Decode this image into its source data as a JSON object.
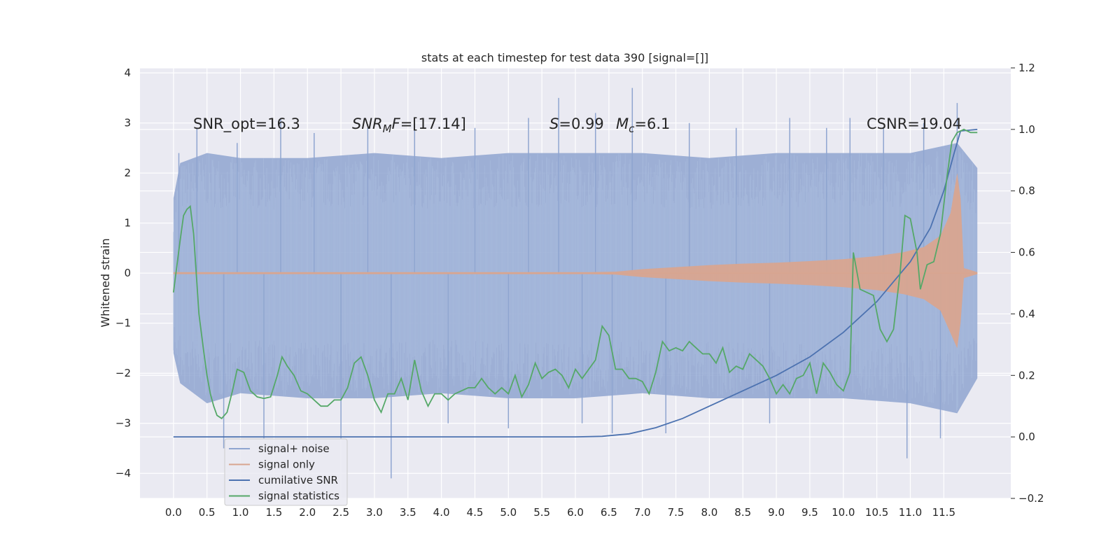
{
  "chart_data": {
    "type": "line",
    "title": "stats at each timestep for test data 390 [signal=[]]",
    "ylabel": "Whitened strain",
    "xlim": [
      -0.5,
      12.5
    ],
    "ylim": [
      -4.5,
      4.1
    ],
    "y2lim": [
      -0.2,
      1.2
    ],
    "grid": true,
    "legend_location": "lower-left",
    "x_ticks": [
      "0.0",
      "0.5",
      "1.0",
      "1.5",
      "2.0",
      "2.5",
      "3.0",
      "3.5",
      "4.0",
      "4.5",
      "5.0",
      "5.5",
      "6.0",
      "6.5",
      "7.0",
      "7.5",
      "8.0",
      "8.5",
      "9.0",
      "9.5",
      "10.0",
      "10.5",
      "11.0",
      "11.5"
    ],
    "y_ticks": [
      "4",
      "3",
      "2",
      "1",
      "0",
      "−1",
      "−2",
      "−3",
      "−4"
    ],
    "y2_ticks": [
      "1.2",
      "1.0",
      "0.8",
      "0.6",
      "0.4",
      "0.2",
      "0.0",
      "−0.2"
    ],
    "annotations": {
      "snr_opt": "SNR_opt=16.3",
      "snr_mf_base": "SNR",
      "snr_mf_sub": "M",
      "snr_mf_rest": "F=[17.14]",
      "s_label": "S",
      "s_value": "=0.99",
      "mc_base": "M",
      "mc_sub": "c",
      "mc_value": "=6.1",
      "csnr": "CSNR=19.04"
    },
    "series": [
      {
        "name": "signal+ noise",
        "axis": "left",
        "color": "#8fa5d0",
        "envelope_upper": [
          [
            0.0,
            1.5
          ],
          [
            0.1,
            2.2
          ],
          [
            0.5,
            2.4
          ],
          [
            1.0,
            2.3
          ],
          [
            2.0,
            2.3
          ],
          [
            3.0,
            2.4
          ],
          [
            4.0,
            2.3
          ],
          [
            5.0,
            2.4
          ],
          [
            6.0,
            2.4
          ],
          [
            7.0,
            2.4
          ],
          [
            8.0,
            2.3
          ],
          [
            9.0,
            2.4
          ],
          [
            10.0,
            2.4
          ],
          [
            11.0,
            2.4
          ],
          [
            11.7,
            2.6
          ],
          [
            12.0,
            2.1
          ]
        ],
        "envelope_lower": [
          [
            0.0,
            -1.6
          ],
          [
            0.1,
            -2.2
          ],
          [
            0.5,
            -2.6
          ],
          [
            1.0,
            -2.4
          ],
          [
            2.0,
            -2.5
          ],
          [
            3.0,
            -2.5
          ],
          [
            4.0,
            -2.4
          ],
          [
            5.0,
            -2.5
          ],
          [
            6.0,
            -2.5
          ],
          [
            7.0,
            -2.4
          ],
          [
            8.0,
            -2.5
          ],
          [
            9.0,
            -2.5
          ],
          [
            10.0,
            -2.5
          ],
          [
            11.0,
            -2.6
          ],
          [
            11.7,
            -2.8
          ],
          [
            12.0,
            -2.1
          ]
        ],
        "spikes": [
          [
            0.08,
            2.4
          ],
          [
            0.35,
            2.9
          ],
          [
            0.75,
            -3.5
          ],
          [
            0.95,
            2.6
          ],
          [
            1.35,
            -3.3
          ],
          [
            1.6,
            3.1
          ],
          [
            2.1,
            2.8
          ],
          [
            2.5,
            -3.3
          ],
          [
            2.9,
            2.9
          ],
          [
            3.25,
            -4.1
          ],
          [
            3.6,
            3.0
          ],
          [
            4.1,
            -3.0
          ],
          [
            4.5,
            2.9
          ],
          [
            5.0,
            -3.1
          ],
          [
            5.3,
            3.1
          ],
          [
            5.75,
            3.5
          ],
          [
            6.1,
            -3.0
          ],
          [
            6.3,
            3.2
          ],
          [
            6.55,
            -3.2
          ],
          [
            6.85,
            3.7
          ],
          [
            7.35,
            -3.2
          ],
          [
            7.7,
            3.0
          ],
          [
            8.4,
            2.9
          ],
          [
            8.9,
            -3.0
          ],
          [
            9.2,
            3.1
          ],
          [
            9.75,
            2.9
          ],
          [
            10.1,
            3.1
          ],
          [
            10.6,
            2.9
          ],
          [
            10.95,
            -3.7
          ],
          [
            11.2,
            3.0
          ],
          [
            11.45,
            -3.3
          ],
          [
            11.7,
            3.4
          ]
        ]
      },
      {
        "name": "signal only",
        "axis": "left",
        "color": "#dd8452",
        "envelope_upper": [
          [
            0.0,
            0.02
          ],
          [
            6.2,
            0.02
          ],
          [
            6.6,
            0.03
          ],
          [
            7.0,
            0.08
          ],
          [
            7.5,
            0.12
          ],
          [
            8.0,
            0.16
          ],
          [
            8.5,
            0.19
          ],
          [
            9.0,
            0.21
          ],
          [
            9.5,
            0.24
          ],
          [
            10.0,
            0.28
          ],
          [
            10.5,
            0.34
          ],
          [
            10.9,
            0.42
          ],
          [
            11.2,
            0.52
          ],
          [
            11.45,
            0.75
          ],
          [
            11.6,
            1.2
          ],
          [
            11.7,
            2.0
          ],
          [
            11.75,
            1.5
          ],
          [
            11.8,
            0.1
          ],
          [
            12.0,
            0.02
          ]
        ],
        "envelope_lower": [
          [
            0.0,
            -0.02
          ],
          [
            6.2,
            -0.02
          ],
          [
            6.6,
            -0.03
          ],
          [
            7.0,
            -0.08
          ],
          [
            7.5,
            -0.12
          ],
          [
            8.0,
            -0.16
          ],
          [
            8.5,
            -0.19
          ],
          [
            9.0,
            -0.21
          ],
          [
            9.5,
            -0.24
          ],
          [
            10.0,
            -0.28
          ],
          [
            10.5,
            -0.34
          ],
          [
            10.9,
            -0.42
          ],
          [
            11.2,
            -0.52
          ],
          [
            11.45,
            -0.75
          ],
          [
            11.6,
            -1.2
          ],
          [
            11.7,
            -1.5
          ],
          [
            11.75,
            -1.0
          ],
          [
            11.8,
            -0.1
          ],
          [
            12.0,
            -0.02
          ]
        ]
      },
      {
        "name": "cumilative SNR",
        "axis": "right",
        "color": "#4c72b0",
        "points": [
          [
            0.0,
            0.0
          ],
          [
            6.0,
            0.0
          ],
          [
            6.4,
            0.002
          ],
          [
            6.8,
            0.01
          ],
          [
            7.2,
            0.03
          ],
          [
            7.6,
            0.06
          ],
          [
            8.0,
            0.1
          ],
          [
            8.5,
            0.15
          ],
          [
            9.0,
            0.2
          ],
          [
            9.5,
            0.26
          ],
          [
            10.0,
            0.34
          ],
          [
            10.5,
            0.44
          ],
          [
            11.0,
            0.57
          ],
          [
            11.3,
            0.68
          ],
          [
            11.5,
            0.8
          ],
          [
            11.65,
            0.92
          ],
          [
            11.75,
            0.995
          ],
          [
            12.0,
            1.0
          ]
        ]
      },
      {
        "name": "signal statistics",
        "axis": "right",
        "color": "#55a868",
        "points": [
          [
            0.0,
            0.47
          ],
          [
            0.1,
            0.64
          ],
          [
            0.15,
            0.72
          ],
          [
            0.2,
            0.74
          ],
          [
            0.25,
            0.75
          ],
          [
            0.3,
            0.66
          ],
          [
            0.38,
            0.4
          ],
          [
            0.45,
            0.28
          ],
          [
            0.5,
            0.2
          ],
          [
            0.55,
            0.14
          ],
          [
            0.6,
            0.1
          ],
          [
            0.65,
            0.07
          ],
          [
            0.72,
            0.06
          ],
          [
            0.8,
            0.08
          ],
          [
            0.88,
            0.15
          ],
          [
            0.95,
            0.22
          ],
          [
            1.05,
            0.21
          ],
          [
            1.15,
            0.15
          ],
          [
            1.25,
            0.13
          ],
          [
            1.35,
            0.125
          ],
          [
            1.45,
            0.13
          ],
          [
            1.55,
            0.2
          ],
          [
            1.62,
            0.26
          ],
          [
            1.7,
            0.23
          ],
          [
            1.8,
            0.2
          ],
          [
            1.9,
            0.15
          ],
          [
            2.0,
            0.14
          ],
          [
            2.1,
            0.12
          ],
          [
            2.2,
            0.1
          ],
          [
            2.3,
            0.1
          ],
          [
            2.4,
            0.12
          ],
          [
            2.5,
            0.12
          ],
          [
            2.6,
            0.16
          ],
          [
            2.7,
            0.24
          ],
          [
            2.8,
            0.26
          ],
          [
            2.9,
            0.2
          ],
          [
            3.0,
            0.12
          ],
          [
            3.1,
            0.08
          ],
          [
            3.2,
            0.14
          ],
          [
            3.3,
            0.14
          ],
          [
            3.4,
            0.19
          ],
          [
            3.5,
            0.12
          ],
          [
            3.6,
            0.25
          ],
          [
            3.7,
            0.15
          ],
          [
            3.8,
            0.1
          ],
          [
            3.9,
            0.14
          ],
          [
            4.0,
            0.14
          ],
          [
            4.1,
            0.12
          ],
          [
            4.2,
            0.14
          ],
          [
            4.3,
            0.15
          ],
          [
            4.4,
            0.16
          ],
          [
            4.5,
            0.16
          ],
          [
            4.6,
            0.19
          ],
          [
            4.7,
            0.16
          ],
          [
            4.8,
            0.14
          ],
          [
            4.9,
            0.16
          ],
          [
            5.0,
            0.14
          ],
          [
            5.1,
            0.2
          ],
          [
            5.2,
            0.13
          ],
          [
            5.3,
            0.17
          ],
          [
            5.4,
            0.24
          ],
          [
            5.5,
            0.19
          ],
          [
            5.6,
            0.21
          ],
          [
            5.7,
            0.22
          ],
          [
            5.8,
            0.2
          ],
          [
            5.9,
            0.16
          ],
          [
            6.0,
            0.22
          ],
          [
            6.1,
            0.19
          ],
          [
            6.2,
            0.22
          ],
          [
            6.3,
            0.25
          ],
          [
            6.4,
            0.36
          ],
          [
            6.5,
            0.33
          ],
          [
            6.6,
            0.22
          ],
          [
            6.7,
            0.22
          ],
          [
            6.8,
            0.19
          ],
          [
            6.9,
            0.19
          ],
          [
            7.0,
            0.18
          ],
          [
            7.1,
            0.14
          ],
          [
            7.2,
            0.21
          ],
          [
            7.3,
            0.31
          ],
          [
            7.4,
            0.28
          ],
          [
            7.5,
            0.29
          ],
          [
            7.6,
            0.28
          ],
          [
            7.7,
            0.31
          ],
          [
            7.8,
            0.29
          ],
          [
            7.9,
            0.27
          ],
          [
            8.0,
            0.27
          ],
          [
            8.1,
            0.24
          ],
          [
            8.2,
            0.29
          ],
          [
            8.3,
            0.21
          ],
          [
            8.4,
            0.23
          ],
          [
            8.5,
            0.22
          ],
          [
            8.6,
            0.27
          ],
          [
            8.7,
            0.25
          ],
          [
            8.8,
            0.23
          ],
          [
            8.9,
            0.19
          ],
          [
            9.0,
            0.14
          ],
          [
            9.1,
            0.17
          ],
          [
            9.2,
            0.14
          ],
          [
            9.3,
            0.19
          ],
          [
            9.4,
            0.2
          ],
          [
            9.5,
            0.24
          ],
          [
            9.6,
            0.14
          ],
          [
            9.7,
            0.24
          ],
          [
            9.8,
            0.21
          ],
          [
            9.9,
            0.17
          ],
          [
            10.0,
            0.15
          ],
          [
            10.1,
            0.21
          ],
          [
            10.15,
            0.6
          ],
          [
            10.25,
            0.48
          ],
          [
            10.35,
            0.47
          ],
          [
            10.45,
            0.46
          ],
          [
            10.55,
            0.35
          ],
          [
            10.65,
            0.31
          ],
          [
            10.75,
            0.35
          ],
          [
            10.85,
            0.54
          ],
          [
            10.92,
            0.72
          ],
          [
            11.0,
            0.71
          ],
          [
            11.1,
            0.6
          ],
          [
            11.15,
            0.48
          ],
          [
            11.25,
            0.56
          ],
          [
            11.35,
            0.57
          ],
          [
            11.45,
            0.66
          ],
          [
            11.55,
            0.85
          ],
          [
            11.62,
            0.96
          ],
          [
            11.7,
            0.99
          ],
          [
            11.8,
            1.0
          ],
          [
            11.9,
            0.99
          ],
          [
            12.0,
            0.99
          ]
        ]
      }
    ]
  }
}
